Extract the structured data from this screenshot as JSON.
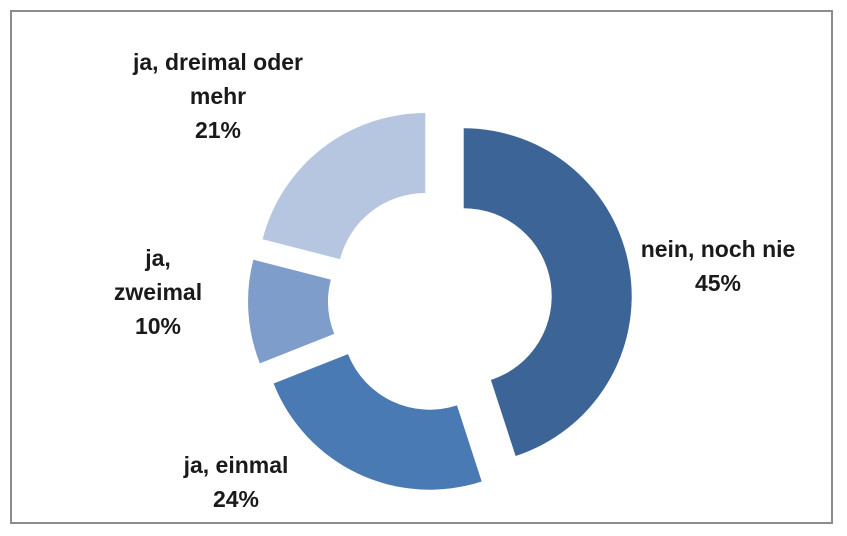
{
  "chart_data": {
    "type": "donut",
    "categories": [
      "nein, noch nie",
      "ja, einmal",
      "ja, zweimal",
      "ja, dreimal oder mehr"
    ],
    "values": [
      45,
      24,
      10,
      21
    ],
    "value_labels": [
      "45%",
      "24%",
      "10%",
      "21%"
    ],
    "colors": [
      "#3d6496",
      "#4a7ab4",
      "#7f9dcb",
      "#b7c6e0"
    ]
  }
}
